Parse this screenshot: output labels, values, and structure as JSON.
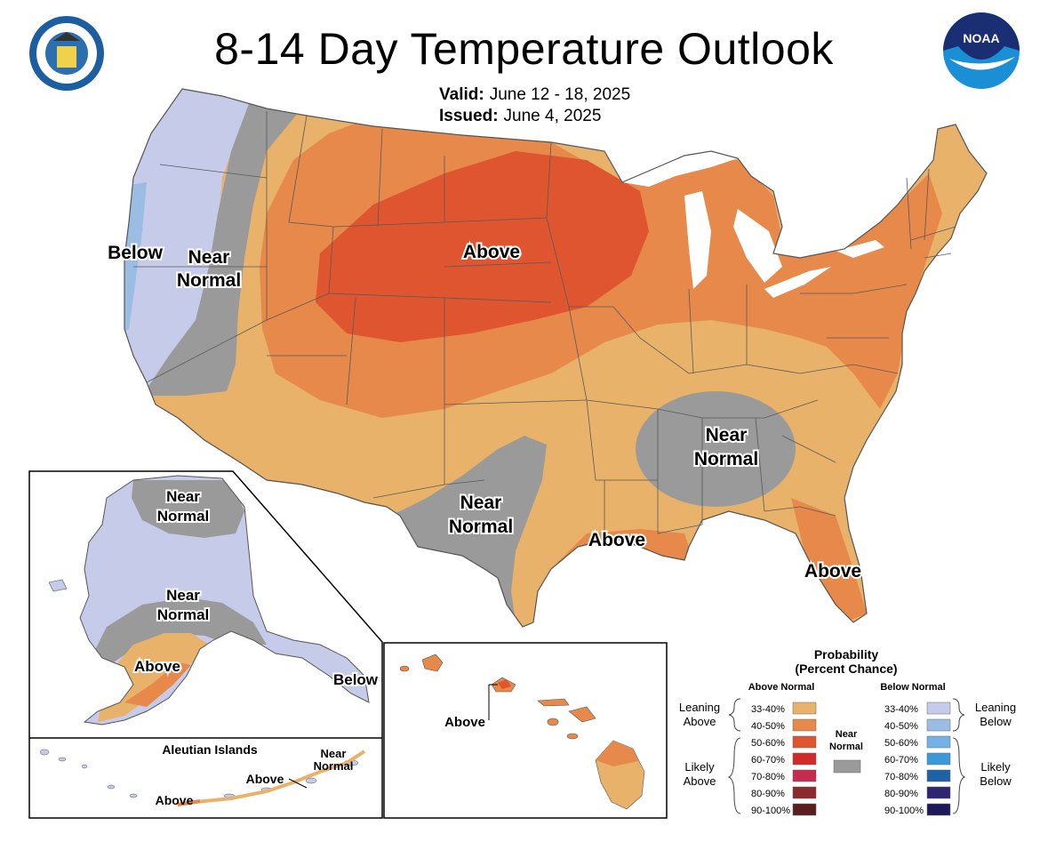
{
  "title": "8-14 Day Temperature Outlook",
  "valid_label": "Valid:",
  "valid_value": "June 12 - 18, 2025",
  "issued_label": "Issued:",
  "issued_value": "June 4, 2025",
  "logos": {
    "left": "department-of-commerce-seal",
    "right": "noaa-logo",
    "noaa_text": "NOAA"
  },
  "map_labels": {
    "conus_below": "Below",
    "conus_near_west_1": "Near",
    "conus_near_west_2": "Normal",
    "conus_above_north": "Above",
    "conus_near_texas_1": "Near",
    "conus_near_texas_2": "Normal",
    "conus_near_southeast_1": "Near",
    "conus_near_southeast_2": "Normal",
    "conus_above_gulf": "Above",
    "conus_above_florida": "Above",
    "ak_near_north_1": "Near",
    "ak_near_north_2": "Normal",
    "ak_near_mid_1": "Near",
    "ak_near_mid_2": "Normal",
    "ak_above": "Above",
    "ak_below": "Below",
    "aleutian_title": "Aleutian Islands",
    "aleutian_near_1": "Near",
    "aleutian_near_2": "Normal",
    "aleutian_above_1": "Above",
    "aleutian_above_2": "Above",
    "hawaii_above": "Above"
  },
  "legend": {
    "title_1": "Probability",
    "title_2": "(Percent Chance)",
    "above_header": "Above Normal",
    "below_header": "Below Normal",
    "near_label_1": "Near",
    "near_label_2": "Normal",
    "leaning_above_1": "Leaning",
    "leaning_above_2": "Above",
    "likely_above_1": "Likely",
    "likely_above_2": "Above",
    "leaning_below_1": "Leaning",
    "leaning_below_2": "Below",
    "likely_below_1": "Likely",
    "likely_below_2": "Below",
    "above_bins": [
      {
        "label": "33-40%",
        "color": "#e8b26a"
      },
      {
        "label": "40-50%",
        "color": "#e6894a"
      },
      {
        "label": "50-60%",
        "color": "#de5530"
      },
      {
        "label": "60-70%",
        "color": "#d12a2a"
      },
      {
        "label": "70-80%",
        "color": "#c52c4d"
      },
      {
        "label": "80-90%",
        "color": "#8b2a2f"
      },
      {
        "label": "90-100%",
        "color": "#5a1e1e"
      }
    ],
    "below_bins": [
      {
        "label": "33-40%",
        "color": "#c5cbe8"
      },
      {
        "label": "40-50%",
        "color": "#9cbde3"
      },
      {
        "label": "50-60%",
        "color": "#72b2e4"
      },
      {
        "label": "60-70%",
        "color": "#3c99d8"
      },
      {
        "label": "70-80%",
        "color": "#1e62a8"
      },
      {
        "label": "80-90%",
        "color": "#2e2670"
      },
      {
        "label": "90-100%",
        "color": "#1e1a5a"
      }
    ],
    "near_color": "#9a9a9a"
  }
}
